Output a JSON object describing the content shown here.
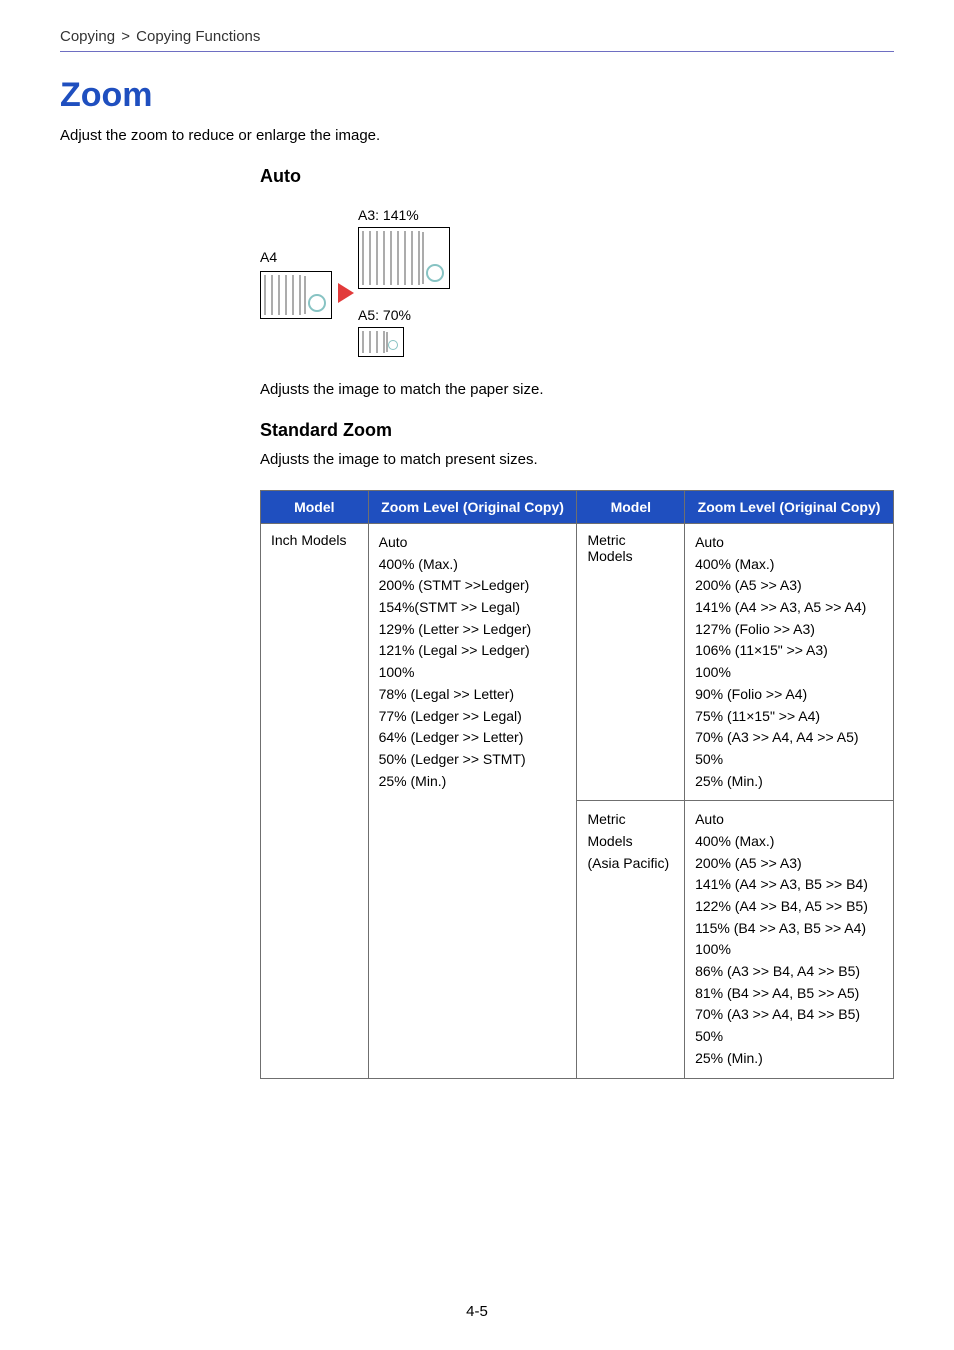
{
  "breadcrumb": {
    "section": "Copying",
    "page": "Copying Functions",
    "separator": ">"
  },
  "title": "Zoom",
  "intro": "Adjust the zoom to reduce or enlarge the image.",
  "auto": {
    "heading": "Auto",
    "a4_label": "A4",
    "a3_label": "A3: 141%",
    "a5_label": "A5: 70%",
    "desc": "Adjusts the image to match the paper size."
  },
  "standard": {
    "heading": "Standard Zoom",
    "desc": "Adjusts the image to match present sizes."
  },
  "table": {
    "headers": {
      "model_a": "Model",
      "zoom_a": "Zoom Level (Original Copy)",
      "model_b": "Model",
      "zoom_b": "Zoom Level (Original Copy)"
    },
    "row0": {
      "model_a": "Inch Models",
      "zoom_a": [
        "Auto",
        "400% (Max.)",
        "200% (STMT >>Ledger)",
        "154%(STMT >> Legal)",
        "129% (Letter >> Ledger)",
        "121% (Legal >> Ledger)",
        "100%",
        "78% (Legal >> Letter)",
        "77% (Ledger >> Legal)",
        "64% (Ledger >> Letter)",
        "50% (Ledger >> STMT)",
        "25% (Min.)"
      ],
      "model_b": "Metric Models",
      "zoom_b": [
        "Auto",
        "400% (Max.)",
        "200% (A5 >> A3)",
        "141% (A4 >> A3, A5 >> A4)",
        "127% (Folio >> A3)",
        "106% (11×15\" >> A3)",
        "100%",
        "90% (Folio >> A4)",
        "75% (11×15\" >> A4)",
        "70% (A3 >> A4, A4 >> A5)",
        "50%",
        "25% (Min.)"
      ]
    },
    "row1": {
      "model_b_line1": "Metric Models",
      "model_b_line2": "(Asia Pacific)",
      "zoom_b": [
        "Auto",
        "400% (Max.)",
        "200% (A5 >> A3)",
        "141% (A4 >> A3, B5 >> B4)",
        "122% (A4 >> B4, A5 >> B5)",
        "115% (B4 >> A3, B5 >> A4)",
        "100%",
        "86% (A3 >> B4, A4 >> B5)",
        "81% (B4 >> A4, B5 >> A5)",
        "70% (A3 >> A4, B4 >> B5)",
        "50%",
        "25% (Min.)"
      ]
    }
  },
  "page_number": "4-5",
  "colors": {
    "title": "#1f4fbf",
    "rule": "#6e6ec2",
    "table_head_bg": "#1f4fbf",
    "table_head_text": "#ffffff",
    "table_border": "#6f6f6f",
    "arrow": "#e23a3a"
  }
}
